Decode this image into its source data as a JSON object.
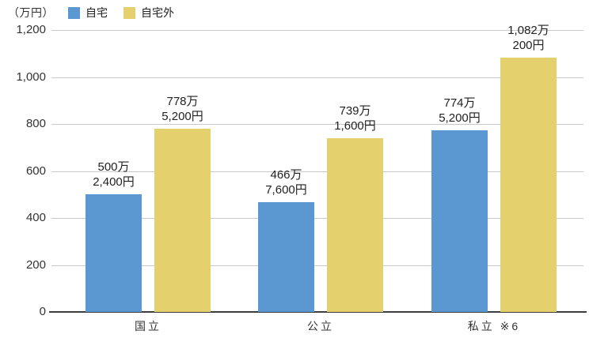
{
  "chart_data": {
    "type": "bar",
    "unit_label": "（万円）",
    "categories": [
      "国立",
      "公立",
      "私立 ※6"
    ],
    "series": [
      {
        "name": "自宅",
        "color": "#5b97d1",
        "values": [
          500.24,
          466.76,
          774.52
        ],
        "labels": [
          [
            "500万",
            "2,400円"
          ],
          [
            "466万",
            "7,600円"
          ],
          [
            "774万",
            "5,200円"
          ]
        ]
      },
      {
        "name": "自宅外",
        "color": "#e5d06e",
        "values": [
          778.52,
          739.16,
          1082.02
        ],
        "labels": [
          [
            "778万",
            "5,200円"
          ],
          [
            "739万",
            "1,600円"
          ],
          [
            "1,082万",
            "200円"
          ]
        ]
      }
    ],
    "ylim": [
      0,
      1200
    ],
    "yticks": [
      {
        "value": 0,
        "label": "0"
      },
      {
        "value": 200,
        "label": "200"
      },
      {
        "value": 400,
        "label": "400"
      },
      {
        "value": 600,
        "label": "600"
      },
      {
        "value": 800,
        "label": "800"
      },
      {
        "value": 1000,
        "label": "1,000"
      },
      {
        "value": 1200,
        "label": "1,200"
      }
    ],
    "grid": true,
    "legend_position": "top",
    "colors": {
      "gridline": "#c8c8c8",
      "axis": "#3d3d3d",
      "text": "#222222"
    }
  }
}
